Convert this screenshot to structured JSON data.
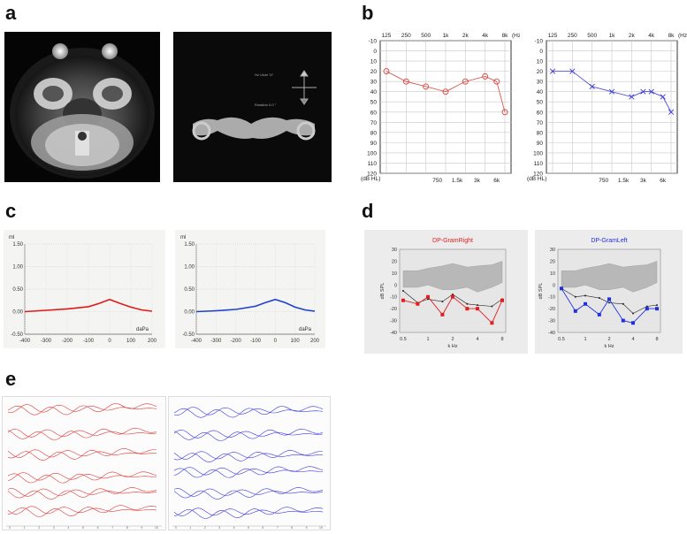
{
  "figure": {
    "panel_labels": [
      "a",
      "b",
      "c",
      "d",
      "e"
    ]
  },
  "panel_a": {
    "photo2_text": [
      "Hz Ulcer 3?",
      "Rotation 0.0 °"
    ]
  },
  "panel_b": {
    "colors": {
      "right": "#d9443f",
      "left": "#3a3ad6"
    },
    "freq_top": [
      "125",
      "250",
      "500",
      "1k",
      "2k",
      "4k",
      "8k"
    ],
    "freq_unit": "(Hz)",
    "freq_bottom": [
      "750",
      "1.5k",
      "3k",
      "6k"
    ],
    "db_ticks": [
      "-10",
      "0",
      "10",
      "20",
      "30",
      "40",
      "50",
      "60",
      "70",
      "80",
      "90",
      "100",
      "110",
      "120"
    ],
    "db_unit": "(dB HL)",
    "chart_data": [
      {
        "type": "line",
        "series": [
          {
            "name": "",
            "marker": "circle",
            "points": [
              [
                125,
                20
              ],
              [
                250,
                30
              ],
              [
                500,
                35
              ],
              [
                1000,
                40
              ],
              [
                2000,
                30
              ],
              [
                4000,
                25
              ],
              [
                6000,
                30
              ],
              [
                8000,
                60
              ]
            ]
          }
        ]
      },
      {
        "type": "line",
        "series": [
          {
            "name": "",
            "marker": "cross",
            "points": [
              [
                125,
                20
              ],
              [
                250,
                20
              ],
              [
                500,
                35
              ],
              [
                1000,
                40
              ],
              [
                2000,
                45
              ],
              [
                3000,
                40
              ],
              [
                4000,
                40
              ],
              [
                6000,
                45
              ],
              [
                8000,
                60
              ]
            ]
          }
        ]
      }
    ]
  },
  "panel_c": {
    "y_unit": "ml",
    "y_ticks_left": [
      "1.50",
      "1.00",
      "0.50",
      "0.00",
      "-0.50"
    ],
    "y_ticks_right": [
      "1.50",
      "1.00",
      "0.50",
      "0.00",
      "-0.50"
    ],
    "x_ticks": [
      "-400",
      "-300",
      "-200",
      "-100",
      "0",
      "100",
      "200"
    ],
    "x_unit": "daPa",
    "colors": {
      "right": "#e01a1a",
      "left": "#1f3fd0"
    },
    "chart_data": [
      {
        "type": "line",
        "x": [
          -400,
          -300,
          -200,
          -100,
          -50,
          0,
          50,
          100,
          150,
          200
        ],
        "y": [
          0.0,
          0.03,
          0.06,
          0.11,
          0.18,
          0.27,
          0.18,
          0.1,
          0.04,
          0.01
        ]
      },
      {
        "type": "line",
        "x": [
          -400,
          -300,
          -200,
          -100,
          -50,
          0,
          50,
          100,
          150,
          200
        ],
        "y": [
          0.0,
          0.02,
          0.05,
          0.12,
          0.2,
          0.27,
          0.2,
          0.1,
          0.04,
          0.01
        ]
      }
    ]
  },
  "panel_d": {
    "title_right": "DP-GramRight",
    "title_left": "DP-GramLeft",
    "y_label": "dB SPL",
    "x_label": "k Hz",
    "y_ticks": [
      "30",
      "20",
      "10",
      "0",
      "-10",
      "-20",
      "-30",
      "-40"
    ],
    "x_ticks": [
      "0.5",
      "1",
      "2",
      "4",
      "8"
    ],
    "colors": {
      "right": "#e02020",
      "left": "#2030e0"
    },
    "chart_data": [
      {
        "type": "line",
        "x": [
          0.5,
          0.75,
          1,
          1.5,
          2,
          3,
          4,
          6,
          8
        ],
        "dp": [
          -13,
          -16,
          -10,
          -25,
          -10,
          -20,
          -20,
          -32,
          -13
        ],
        "noise": [
          -5,
          -15,
          -12,
          -14,
          -8,
          -16,
          -17,
          -18,
          -12
        ]
      },
      {
        "type": "line",
        "x": [
          0.5,
          0.75,
          1,
          1.5,
          2,
          3,
          4,
          6,
          8
        ],
        "dp": [
          -3,
          -22,
          -16,
          -25,
          -12,
          -30,
          -32,
          -20,
          -20
        ],
        "noise": [
          -3,
          -10,
          -9,
          -11,
          -15,
          -16,
          -24,
          -18,
          -17
        ]
      }
    ]
  },
  "panel_e": {
    "colors": {
      "right": "#e03a3a",
      "left": "#3a3ae0"
    },
    "x_ticks": [
      "0",
      "1",
      "2",
      "3",
      "4",
      "5",
      "6",
      "7",
      "8",
      "9",
      "10"
    ]
  }
}
